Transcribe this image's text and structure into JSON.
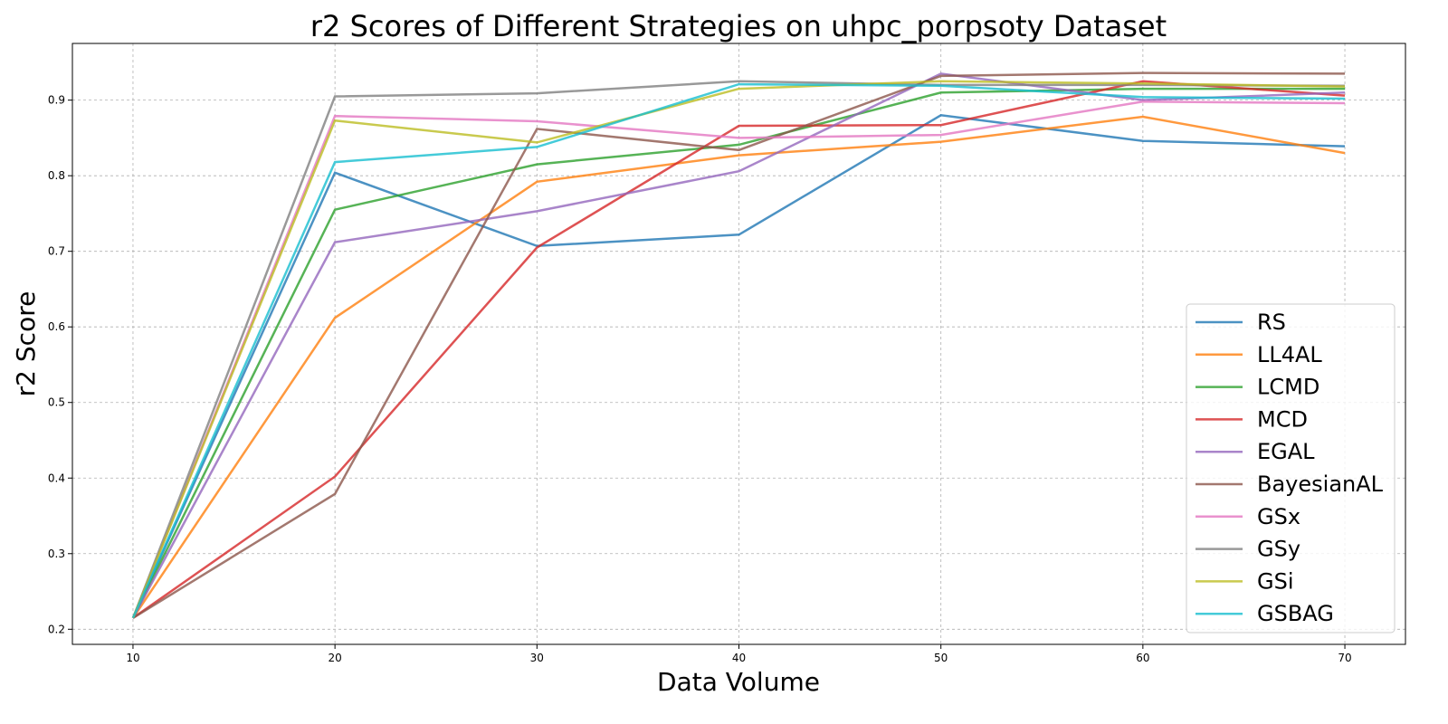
{
  "chart_data": {
    "type": "line",
    "title": "r2 Scores of Different Strategies on uhpc_porpsoty Dataset",
    "xlabel": "Data Volume",
    "ylabel": "r2 Score",
    "x": [
      10,
      20,
      30,
      40,
      50,
      60,
      70
    ],
    "xticks": [
      "10",
      "20",
      "30",
      "40",
      "50",
      "60",
      "70"
    ],
    "yticks": [
      "0.2",
      "0.3",
      "0.4",
      "0.5",
      "0.6",
      "0.7",
      "0.8",
      "0.9"
    ],
    "xlim": [
      7,
      73
    ],
    "ylim": [
      0.18,
      0.975
    ],
    "grid": true,
    "legend_position": "lower-right",
    "series": [
      {
        "name": "RS",
        "color": "#1f77b4",
        "values": [
          0.215,
          0.804,
          0.707,
          0.722,
          0.88,
          0.846,
          0.839
        ]
      },
      {
        "name": "LL4AL",
        "color": "#ff7f0e",
        "values": [
          0.215,
          0.612,
          0.792,
          0.827,
          0.845,
          0.878,
          0.83
        ]
      },
      {
        "name": "LCMD",
        "color": "#2ca02c",
        "values": [
          0.215,
          0.755,
          0.815,
          0.841,
          0.91,
          0.915,
          0.915
        ]
      },
      {
        "name": "MCD",
        "color": "#d62728",
        "values": [
          0.215,
          0.402,
          0.705,
          0.866,
          0.867,
          0.925,
          0.906
        ]
      },
      {
        "name": "EGAL",
        "color": "#9467bd",
        "values": [
          0.215,
          0.712,
          0.753,
          0.806,
          0.935,
          0.9,
          0.91
        ]
      },
      {
        "name": "BayesianAL",
        "color": "#8c564b",
        "values": [
          0.215,
          0.379,
          0.862,
          0.834,
          0.932,
          0.936,
          0.935
        ]
      },
      {
        "name": "GSx",
        "color": "#e377c2",
        "values": [
          0.215,
          0.879,
          0.872,
          0.85,
          0.854,
          0.898,
          0.896
        ]
      },
      {
        "name": "GSy",
        "color": "#7f7f7f",
        "values": [
          0.215,
          0.905,
          0.909,
          0.925,
          0.92,
          0.92,
          0.919
        ]
      },
      {
        "name": "GSi",
        "color": "#bcbd22",
        "values": [
          0.215,
          0.873,
          0.844,
          0.915,
          0.925,
          0.922,
          0.918
        ]
      },
      {
        "name": "GSBAG",
        "color": "#17becf",
        "values": [
          0.215,
          0.818,
          0.838,
          0.921,
          0.919,
          0.904,
          0.902
        ]
      }
    ]
  }
}
